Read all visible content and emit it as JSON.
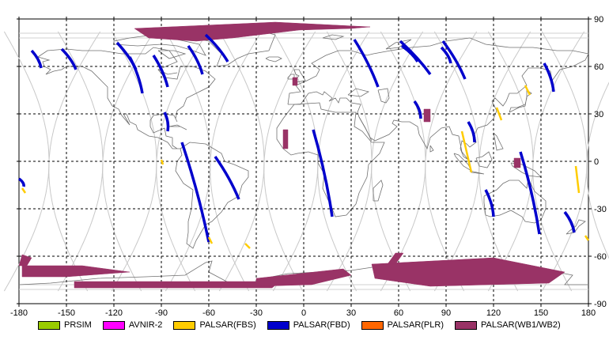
{
  "chart_data": {
    "type": "map",
    "x_ticks": [
      "-180",
      "-150",
      "-120",
      "-90",
      "-60",
      "-30",
      "0",
      "30",
      "60",
      "90",
      "120",
      "150",
      "180"
    ],
    "y_ticks_right": [
      "90",
      "60",
      "30",
      "0",
      "-30",
      "-60",
      "-90"
    ],
    "xlim": [
      -180,
      180
    ],
    "ylim": [
      -90,
      90
    ],
    "grid": true,
    "legend_position": "bottom",
    "legend": [
      {
        "label": "PRSIM",
        "color": "#99cc00"
      },
      {
        "label": "AVNIR-2",
        "color": "#ff00ff"
      },
      {
        "label": "PALSAR(FBS)",
        "color": "#ffcc00"
      },
      {
        "label": "PALSAR(FBD)",
        "color": "#0000cc"
      },
      {
        "label": "PALSAR(PLR)",
        "color": "#ff6600"
      },
      {
        "label": "PALSAR(WB1/WB2)",
        "color": "#993366"
      }
    ],
    "fbd_swaths": [
      [
        [
          -172,
          70
        ],
        [
          -166,
          59
        ]
      ],
      [
        [
          -153,
          71
        ],
        [
          -144,
          58
        ]
      ],
      [
        [
          -118,
          75
        ],
        [
          -106,
          58
        ]
      ],
      [
        [
          -110,
          66
        ],
        [
          -102,
          43
        ]
      ],
      [
        [
          -73,
          73
        ],
        [
          -64,
          55
        ]
      ],
      [
        [
          -62,
          80
        ],
        [
          -48,
          63
        ]
      ],
      [
        [
          -95,
          67
        ],
        [
          -86,
          47
        ]
      ],
      [
        [
          -88,
          31
        ],
        [
          -86,
          19
        ]
      ],
      [
        [
          -77,
          12
        ],
        [
          -60,
          -51
        ]
      ],
      [
        [
          -56,
          3
        ],
        [
          -41,
          -24
        ]
      ],
      [
        [
          -180,
          -11
        ],
        [
          -177,
          -16
        ]
      ],
      [
        [
          32,
          77
        ],
        [
          47,
          47
        ]
      ],
      [
        [
          61,
          76
        ],
        [
          80,
          55
        ]
      ],
      [
        [
          88,
          76
        ],
        [
          102,
          52
        ]
      ],
      [
        [
          70,
          38
        ],
        [
          74,
          27
        ]
      ],
      [
        [
          87,
          72
        ],
        [
          93,
          62
        ]
      ],
      [
        [
          6,
          20
        ],
        [
          18,
          -35
        ]
      ],
      [
        [
          62,
          73
        ],
        [
          72,
          63
        ]
      ],
      [
        [
          104,
          25
        ],
        [
          108,
          12
        ]
      ],
      [
        [
          137,
          6
        ],
        [
          149,
          -46
        ]
      ],
      [
        [
          115,
          -18
        ],
        [
          120,
          -35
        ]
      ],
      [
        [
          165,
          -32
        ],
        [
          171,
          -45
        ]
      ],
      [
        [
          152,
          62
        ],
        [
          158,
          44
        ]
      ]
    ],
    "fbs_swaths": [
      [
        [
          -178,
          -17
        ],
        [
          -176,
          -20
        ]
      ],
      [
        [
          -90,
          1
        ],
        [
          -89,
          -2
        ]
      ],
      [
        [
          -60,
          -48
        ],
        [
          -58,
          -52
        ]
      ],
      [
        [
          -37,
          -52
        ],
        [
          -34,
          -55
        ]
      ],
      [
        [
          100,
          19
        ],
        [
          106,
          -7
        ]
      ],
      [
        [
          122,
          34
        ],
        [
          125,
          26
        ]
      ],
      [
        [
          140,
          48
        ],
        [
          143,
          42
        ]
      ],
      [
        [
          172,
          -3
        ],
        [
          174,
          -20
        ]
      ],
      [
        [
          178,
          -47
        ],
        [
          180,
          -50
        ]
      ]
    ],
    "wb_regions": [
      [
        [
          -107,
          84
        ],
        [
          -40,
          87
        ],
        [
          -18,
          88
        ],
        [
          42,
          85
        ],
        [
          30,
          84
        ],
        [
          -3,
          83
        ],
        [
          -45,
          78
        ],
        [
          -68,
          76
        ],
        [
          -98,
          78
        ]
      ],
      [
        [
          -178,
          -66
        ],
        [
          -140,
          -66
        ],
        [
          -110,
          -70
        ],
        [
          -150,
          -73
        ],
        [
          -178,
          -73
        ]
      ],
      [
        [
          -145,
          -76
        ],
        [
          -15,
          -76
        ],
        [
          -20,
          -80
        ],
        [
          -145,
          -80
        ]
      ],
      [
        [
          -30,
          -74
        ],
        [
          25,
          -68
        ],
        [
          30,
          -72
        ],
        [
          5,
          -78
        ],
        [
          -30,
          -79
        ]
      ],
      [
        [
          43,
          -65
        ],
        [
          120,
          -61
        ],
        [
          165,
          -70
        ],
        [
          155,
          -77
        ],
        [
          80,
          -79
        ],
        [
          45,
          -74
        ]
      ],
      [
        [
          58,
          -58
        ],
        [
          63,
          -58
        ],
        [
          58,
          -65
        ],
        [
          53,
          -65
        ]
      ],
      [
        [
          -178,
          -59
        ],
        [
          -172,
          -61
        ],
        [
          -175,
          -66
        ],
        [
          -180,
          -66
        ]
      ],
      [
        [
          -7,
          53
        ],
        [
          -4,
          53
        ],
        [
          -4,
          48
        ],
        [
          -7,
          48
        ]
      ],
      [
        [
          -13,
          20
        ],
        [
          -10,
          20
        ],
        [
          -10,
          8
        ],
        [
          -13,
          8
        ]
      ],
      [
        [
          76,
          33
        ],
        [
          80,
          33
        ],
        [
          80,
          25
        ],
        [
          76,
          25
        ]
      ],
      [
        [
          133,
          2
        ],
        [
          137,
          2
        ],
        [
          137,
          -4
        ],
        [
          133,
          -4
        ]
      ]
    ],
    "orbit_phases": [
      -155,
      -121,
      -87,
      -53,
      -19,
      15,
      49,
      83,
      117,
      151,
      185
    ]
  }
}
